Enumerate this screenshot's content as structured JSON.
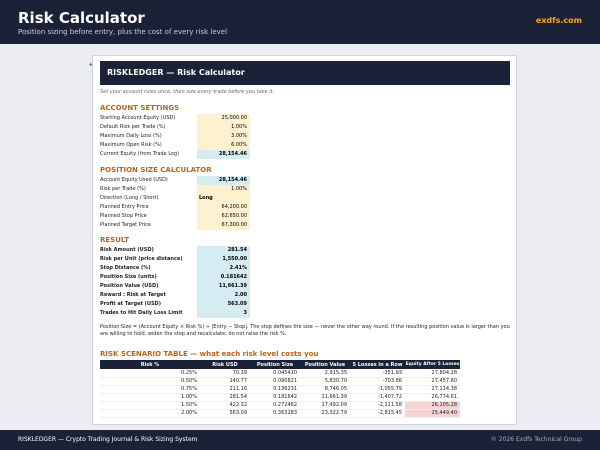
{
  "header": {
    "title": "Risk Calculator",
    "subtitle": "Position sizing before entry, plus the cost of every risk level",
    "brand": "exdfs.com"
  },
  "sheet": {
    "back_link": "←",
    "banner": "RISKLEDGER  —  Risk Calculator",
    "note": "Set your account rules once, then size every trade before you take it.",
    "account_settings": {
      "title": "ACCOUNT SETTINGS",
      "rows": [
        {
          "label": "Starting Account Equity (USD)",
          "value": "25,000.00"
        },
        {
          "label": "Default Risk per Trade (%)",
          "value": "1.00%"
        },
        {
          "label": "Maximum Daily Loss (%)",
          "value": "3.00%"
        },
        {
          "label": "Maximum Open Risk (%)",
          "value": "6.00%"
        },
        {
          "label": "Current Equity (from Trade Log)",
          "value": "28,154.46"
        }
      ]
    },
    "position_size": {
      "title": "POSITION SIZE CALCULATOR",
      "rows": [
        {
          "label": "Account Equity Used (USD)",
          "value": "28,154.46"
        },
        {
          "label": "Risk per Trade (%)",
          "value": "1.00%"
        },
        {
          "label": "Direction (Long / Short)",
          "value": "Long"
        },
        {
          "label": "Planned Entry Price",
          "value": "64,200.00"
        },
        {
          "label": "Planned Stop Price",
          "value": "62,650.00"
        },
        {
          "label": "Planned Target Price",
          "value": "67,300.00"
        }
      ]
    },
    "result": {
      "title": "RESULT",
      "rows": [
        {
          "label": "Risk Amount (USD)",
          "value": "281.54"
        },
        {
          "label": "Risk per Unit (price distance)",
          "value": "1,550.00"
        },
        {
          "label": "Stop Distance (%)",
          "value": "2.41%"
        },
        {
          "label": "Position Size (units)",
          "value": "0.181642"
        },
        {
          "label": "Position Value (USD)",
          "value": "11,661.39"
        },
        {
          "label": "Reward : Risk at Target",
          "value": "2.00"
        },
        {
          "label": "Profit at Target (USD)",
          "value": "563.09"
        },
        {
          "label": "Trades to Hit Daily Loss Limit",
          "value": "3"
        }
      ]
    },
    "formula": "Position Size = (Account Equity × Risk %) ÷ |Entry − Stop|.  The stop defines the size — never the other way round. If the resulting position value is larger than you are willing to hold, widen the stop and recalculate; do not raise the risk %.",
    "scenario": {
      "title": "RISK SCENARIO TABLE  —  what each risk level costs you",
      "headers": [
        "Risk %",
        "Risk USD",
        "Position Size",
        "Position Value",
        "5 Losses in a Row",
        "Equity After 5 Losses"
      ],
      "rows": [
        [
          "0.25%",
          "70.39",
          "0.045410",
          "2,915.35",
          "-351.93",
          "27,804.28"
        ],
        [
          "0.50%",
          "140.77",
          "0.090821",
          "5,830.70",
          "-703.86",
          "27,457.60"
        ],
        [
          "0.75%",
          "211.16",
          "0.136231",
          "8,746.05",
          "-1,055.79",
          "27,114.38"
        ],
        [
          "1.00%",
          "281.54",
          "0.181642",
          "11,661.39",
          "-1,407.72",
          "26,774.61"
        ],
        [
          "1.50%",
          "422.32",
          "0.272462",
          "17,492.09",
          "-2,111.58",
          "26,105.28"
        ],
        [
          "2.00%",
          "563.09",
          "0.363283",
          "23,322.79",
          "-2,815.45",
          "25,449.40"
        ]
      ]
    }
  },
  "footer": {
    "left": "RISKLEDGER — Crypto Trading Journal & Risk Sizing System",
    "right": "© 2026 Exdfs Technical Group"
  },
  "colors": {
    "navy": "#1b2238",
    "accent": "#b8651b",
    "input": "#fdf1d0",
    "calc": "#d6ecf3",
    "highlight": "#f6d2d2"
  }
}
